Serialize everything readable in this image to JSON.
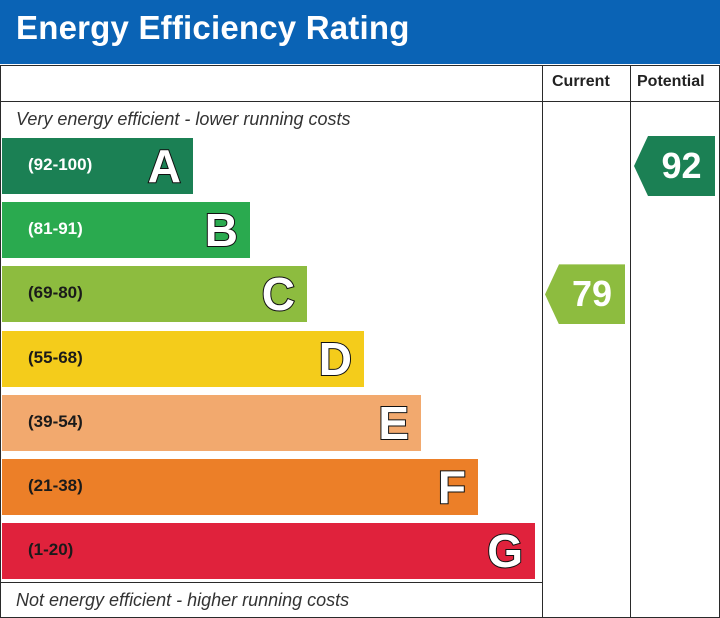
{
  "header": {
    "title": "Energy Efficiency Rating"
  },
  "columns": {
    "current": "Current",
    "potential": "Potential"
  },
  "captions": {
    "top": "Very energy efficient - lower running costs",
    "bottom": "Not energy efficient - higher running costs"
  },
  "chart_data": {
    "type": "bar",
    "title": "Energy Efficiency Rating",
    "bands": [
      {
        "letter": "A",
        "range": "(92-100)",
        "color": "#1b8054",
        "text_color": "#ffffff"
      },
      {
        "letter": "B",
        "range": "(81-91)",
        "color": "#2aaa4f",
        "text_color": "#ffffff"
      },
      {
        "letter": "C",
        "range": "(69-80)",
        "color": "#8dbc3f",
        "text_color": "#1a1a1a"
      },
      {
        "letter": "D",
        "range": "(55-68)",
        "color": "#f4cc1b",
        "text_color": "#1a1a1a"
      },
      {
        "letter": "E",
        "range": "(39-54)",
        "color": "#f2a96e",
        "text_color": "#1a1a1a"
      },
      {
        "letter": "F",
        "range": "(21-38)",
        "color": "#ec7f28",
        "text_color": "#1a1a1a"
      },
      {
        "letter": "G",
        "range": "(1-20)",
        "color": "#e0223c",
        "text_color": "#1a1a1a"
      }
    ],
    "current": {
      "value": 79,
      "band": "C",
      "color": "#8dbc3f"
    },
    "potential": {
      "value": 92,
      "band": "A",
      "color": "#1b8054"
    }
  }
}
